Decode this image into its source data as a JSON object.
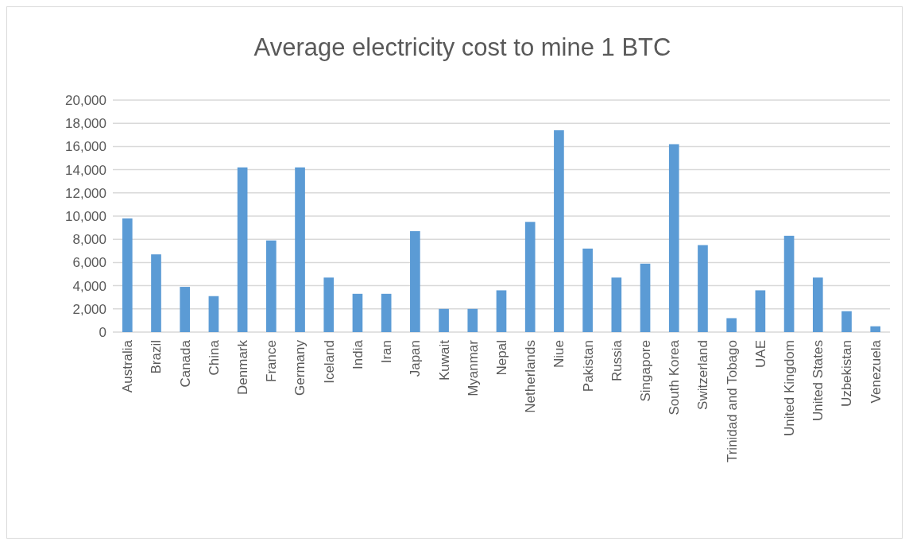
{
  "chart_data": {
    "type": "bar",
    "title": "Average electricity cost to mine 1 BTC",
    "categories": [
      "Australia",
      "Brazil",
      "Canada",
      "China",
      "Denmark",
      "France",
      "Germany",
      "Iceland",
      "India",
      "Iran",
      "Japan",
      "Kuwait",
      "Myanmar",
      "Nepal",
      "Netherlands",
      "Niue",
      "Pakistan",
      "Russia",
      "Singapore",
      "South Korea",
      "Switzerland",
      "Trinidad and Tobago",
      "UAE",
      "United Kingdom",
      "United States",
      "Uzbekistan",
      "Venezuela"
    ],
    "values": [
      9800,
      6700,
      3900,
      3100,
      14200,
      7900,
      14200,
      4700,
      3300,
      3300,
      8700,
      2000,
      2000,
      3600,
      9500,
      17400,
      7200,
      4700,
      5900,
      16200,
      7500,
      1200,
      3600,
      8300,
      4700,
      1800,
      500
    ],
    "color": "#5b9bd5",
    "ylim": [
      0,
      20000
    ],
    "yticks": [
      {
        "value": 0,
        "label": "0"
      },
      {
        "value": 2000,
        "label": "2,000"
      },
      {
        "value": 4000,
        "label": "4,000"
      },
      {
        "value": 6000,
        "label": "6,000"
      },
      {
        "value": 8000,
        "label": "8,000"
      },
      {
        "value": 10000,
        "label": "10,000"
      },
      {
        "value": 12000,
        "label": "12,000"
      },
      {
        "value": 14000,
        "label": "14,000"
      },
      {
        "value": 16000,
        "label": "16,000"
      },
      {
        "value": 18000,
        "label": "18,000"
      },
      {
        "value": 20000,
        "label": "20,000"
      }
    ],
    "grid": true
  }
}
